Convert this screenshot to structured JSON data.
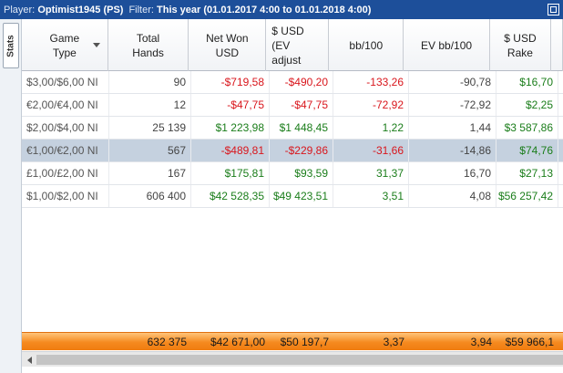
{
  "window": {
    "player_label": "Player:",
    "player_value": "Optimist1945 (PS)",
    "filter_label": "Filter:",
    "filter_value": "This year (01.01.2017 4:00 to 01.01.2018 4:00)"
  },
  "sidebar": {
    "tab_label": "Stats"
  },
  "table": {
    "headers": [
      "Game\nType",
      "Total\nHands",
      "Net Won\nUSD",
      "$ USD\n(EV\nadjust",
      "bb/100",
      "EV bb/100",
      "$ USD\nRake",
      ""
    ],
    "rows": [
      {
        "game": "$3,00/$6,00 NI",
        "hands": "90",
        "net": "-$719,58",
        "ev": "-$490,20",
        "bb": "-133,26",
        "evbb": "-90,78",
        "rake": "$16,70",
        "net_neg": true,
        "ev_neg": true,
        "bb_neg": true
      },
      {
        "game": "€2,00/€4,00 NI",
        "hands": "12",
        "net": "-$47,75",
        "ev": "-$47,75",
        "bb": "-72,92",
        "evbb": "-72,92",
        "rake": "$2,25",
        "net_neg": true,
        "ev_neg": true,
        "bb_neg": true
      },
      {
        "game": "$2,00/$4,00 NI",
        "hands": "25 139",
        "net": "$1 223,98",
        "ev": "$1 448,45",
        "bb": "1,22",
        "evbb": "1,44",
        "rake": "$3 587,86",
        "net_neg": false,
        "ev_neg": false,
        "bb_neg": false
      },
      {
        "game": "€1,00/€2,00 NI",
        "hands": "567",
        "net": "-$489,81",
        "ev": "-$229,86",
        "bb": "-31,66",
        "evbb": "-14,86",
        "rake": "$74,76",
        "net_neg": true,
        "ev_neg": true,
        "bb_neg": true,
        "selected": true
      },
      {
        "game": "£1,00/£2,00 NI",
        "hands": "167",
        "net": "$175,81",
        "ev": "$93,59",
        "bb": "31,37",
        "evbb": "16,70",
        "rake": "$27,13",
        "net_neg": false,
        "ev_neg": false,
        "bb_neg": false
      },
      {
        "game": "$1,00/$2,00 NI",
        "hands": "606 400",
        "net": "$42 528,35",
        "ev": "$49 423,51",
        "bb": "3,51",
        "evbb": "4,08",
        "rake": "$56 257,42",
        "net_neg": false,
        "ev_neg": false,
        "bb_neg": false
      }
    ],
    "totals": {
      "game": "",
      "hands": "632 375",
      "net": "$42 671,00",
      "ev": "$50 197,7",
      "bb": "3,37",
      "evbb": "3,94",
      "rake": "$59 966,1"
    }
  },
  "colors": {
    "titlebar": "#1d4f9a",
    "negative": "#d9161c",
    "positive": "#1a7d1a",
    "total_row": "#f58a1f",
    "selected_row": "#c5d1df"
  }
}
